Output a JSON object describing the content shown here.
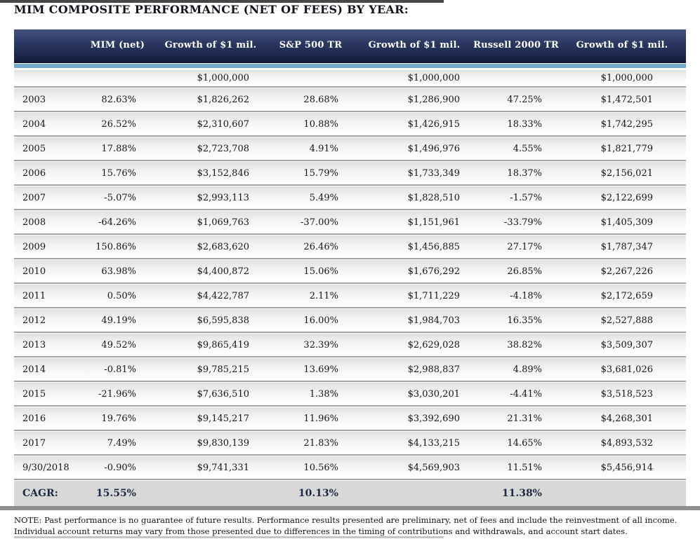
{
  "title": "MIM COMPOSITE PERFORMANCE (NET OF FEES) BY YEAR:",
  "table": {
    "columns": [
      "",
      "MIM (net)",
      "Growth of $1 mil.",
      "S&P 500 TR",
      "Growth of $1 mil.",
      "Russell 2000 TR",
      "Growth of $1 mil."
    ],
    "initial_row": [
      "",
      "",
      "$1,000,000",
      "",
      "$1,000,000",
      "",
      "$1,000,000"
    ],
    "rows": [
      [
        "2003",
        "82.63%",
        "$1,826,262",
        "28.68%",
        "$1,286,900",
        "47.25%",
        "$1,472,501"
      ],
      [
        "2004",
        "26.52%",
        "$2,310,607",
        "10.88%",
        "$1,426,915",
        "18.33%",
        "$1,742,295"
      ],
      [
        "2005",
        "17.88%",
        "$2,723,708",
        "4.91%",
        "$1,496,976",
        "4.55%",
        "$1,821,779"
      ],
      [
        "2006",
        "15.76%",
        "$3,152,846",
        "15.79%",
        "$1,733,349",
        "18.37%",
        "$2,156,021"
      ],
      [
        "2007",
        "-5.07%",
        "$2,993,113",
        "5.49%",
        "$1,828,510",
        "-1.57%",
        "$2,122,699"
      ],
      [
        "2008",
        "-64.26%",
        "$1,069,763",
        "-37.00%",
        "$1,151,961",
        "-33.79%",
        "$1,405,309"
      ],
      [
        "2009",
        "150.86%",
        "$2,683,620",
        "26.46%",
        "$1,456,885",
        "27.17%",
        "$1,787,347"
      ],
      [
        "2010",
        "63.98%",
        "$4,400,872",
        "15.06%",
        "$1,676,292",
        "26.85%",
        "$2,267,226"
      ],
      [
        "2011",
        "0.50%",
        "$4,422,787",
        "2.11%",
        "$1,711,229",
        "-4.18%",
        "$2,172,659"
      ],
      [
        "2012",
        "49.19%",
        "$6,595,838",
        "16.00%",
        "$1,984,703",
        "16.35%",
        "$2,527,888"
      ],
      [
        "2013",
        "49.52%",
        "$9,865,419",
        "32.39%",
        "$2,629,028",
        "38.82%",
        "$3,509,307"
      ],
      [
        "2014",
        "-0.81%",
        "$9,785,215",
        "13.69%",
        "$2,988,837",
        "4.89%",
        "$3,681,026"
      ],
      [
        "2015",
        "-21.96%",
        "$7,636,510",
        "1.38%",
        "$3,030,201",
        "-4.41%",
        "$3,518,523"
      ],
      [
        "2016",
        "19.76%",
        "$9,145,217",
        "11.96%",
        "$3,392,690",
        "21.31%",
        "$4,268,301"
      ],
      [
        "2017",
        "7.49%",
        "$9,830,139",
        "21.83%",
        "$4,133,215",
        "14.65%",
        "$4,893,532"
      ],
      [
        "9/30/2018",
        "-0.90%",
        "$9,741,331",
        "10.56%",
        "$4,569,903",
        "11.51%",
        "$5,456,914"
      ]
    ],
    "cagr_row": [
      "CAGR:",
      "15.55%",
      "",
      "10.13%",
      "",
      "11.38%",
      ""
    ]
  },
  "note": "NOTE:  Past performance is no guarantee of future results. Performance results presented are preliminary, net of fees and include the reinvestment of all income.  Individual account returns may vary from those presented due to differences in the timing of contributions and withdrawals, and account start dates.",
  "colors": {
    "header_navy_top": "#44517b",
    "header_navy_bottom": "#141d3e",
    "accent_blue": "#6fa9cb",
    "row_separator": "#a4a4a4",
    "cagr_row_bg": "#d8d8d8",
    "cagr_text": "#1d2945"
  }
}
